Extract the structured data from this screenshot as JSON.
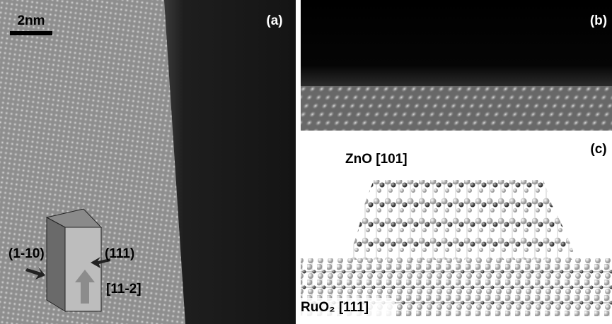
{
  "panels": {
    "a": {
      "label": "(a)",
      "scale_bar": "2nm",
      "annotations": {
        "plane_left": "(1-10)",
        "plane_right": "(111)",
        "direction": "[11-2]"
      }
    },
    "b": {
      "label": "(b)"
    },
    "c": {
      "label": "(c)",
      "top_label": "ZnO [101]",
      "bottom_label": "RuO₂ [111]"
    }
  }
}
